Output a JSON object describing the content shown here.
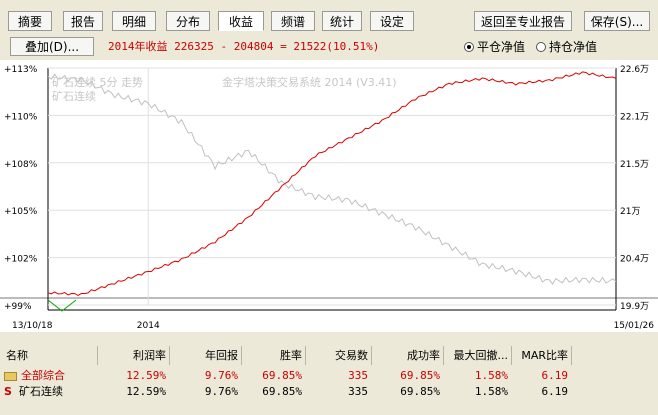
{
  "toolbar": {
    "tabs": [
      "摘要",
      "报告",
      "明细",
      "分布",
      "收益",
      "频谱",
      "统计",
      "设定"
    ],
    "active_tab": "收益",
    "return_pro_label": "返回至专业报告",
    "save_label": "保存(S)..."
  },
  "overlay_label": "叠加(D)...",
  "year_return": "2014年收益 226325 - 204804 = 21522(10.51%)",
  "radio": {
    "flat_label": "平仓净值",
    "hold_label": "持仓净值",
    "selected": "flat"
  },
  "chart": {
    "series_label": "矿石连续 5分 走势",
    "series_sub": "矿石连续",
    "watermark": "金字塔决策交易系统 2014 (V3.41)",
    "y_left_ticks": [
      "+113%",
      "+110%",
      "+108%",
      "+105%",
      "+102%",
      "+99%"
    ],
    "y_right_ticks": [
      "22.6万",
      "22.1万",
      "21.5万",
      "21万",
      "20.4万",
      "19.9万"
    ],
    "x_labels": [
      "13/10/18",
      "2014",
      "15/01/26"
    ],
    "colors": {
      "equity": "#dd0000",
      "price": "#c0c0c0",
      "base": "#000000",
      "start": "#00aa00"
    }
  },
  "chart_data": {
    "type": "line",
    "series": [
      {
        "name": "矿石连续",
        "x": [
          "13/10/18",
          "13/11",
          "13/12",
          "2014",
          "14/01",
          "14/02",
          "14/03",
          "14/04",
          "14/05",
          "14/06",
          "14/07",
          "14/08",
          "14/09",
          "14/10",
          "14/11",
          "14/12",
          "15/01",
          "15/01/26"
        ],
        "values": [
          112.5,
          112.3,
          111.4,
          110.9,
          109.8,
          107.2,
          108.1,
          106.2,
          105.4,
          105.2,
          104.4,
          103.6,
          102.5,
          101.4,
          101.0,
          100.4,
          100.5,
          100.4
        ]
      },
      {
        "name": "平仓净值",
        "x": [
          "13/10/18",
          "13/11",
          "13/12",
          "2014",
          "14/01",
          "14/02",
          "14/03",
          "14/04",
          "14/05",
          "14/06",
          "14/07",
          "14/08",
          "14/09",
          "14/10",
          "14/11",
          "14/12",
          "15/01",
          "15/01/26"
        ],
        "values": [
          20.04,
          20.02,
          20.15,
          20.28,
          20.42,
          20.62,
          20.9,
          21.25,
          21.6,
          21.8,
          22.0,
          22.25,
          22.42,
          22.48,
          22.42,
          22.46,
          22.55,
          22.48
        ]
      }
    ],
    "ylim_left": [
      99,
      113
    ],
    "ylim_right": [
      19.9,
      22.6
    ],
    "grid": true
  },
  "table": {
    "headers": [
      "名称",
      "利润率",
      "年回报",
      "胜率",
      "交易数",
      "成功率",
      "最大回撤...",
      "MAR比率"
    ],
    "rows": [
      {
        "name": "全部综合",
        "icon": "folder-icon",
        "profit": "12.59%",
        "annual": "9.76%",
        "win": "69.85%",
        "trades": "335",
        "success": "69.85%",
        "drawdown": "1.58%",
        "mar": "6.19",
        "color": "#cc0000"
      },
      {
        "name": "矿石连续",
        "icon": "S",
        "profit": "12.59%",
        "annual": "9.76%",
        "win": "69.85%",
        "trades": "335",
        "success": "69.85%",
        "drawdown": "1.58%",
        "mar": "6.19",
        "color": "#000000"
      }
    ]
  }
}
